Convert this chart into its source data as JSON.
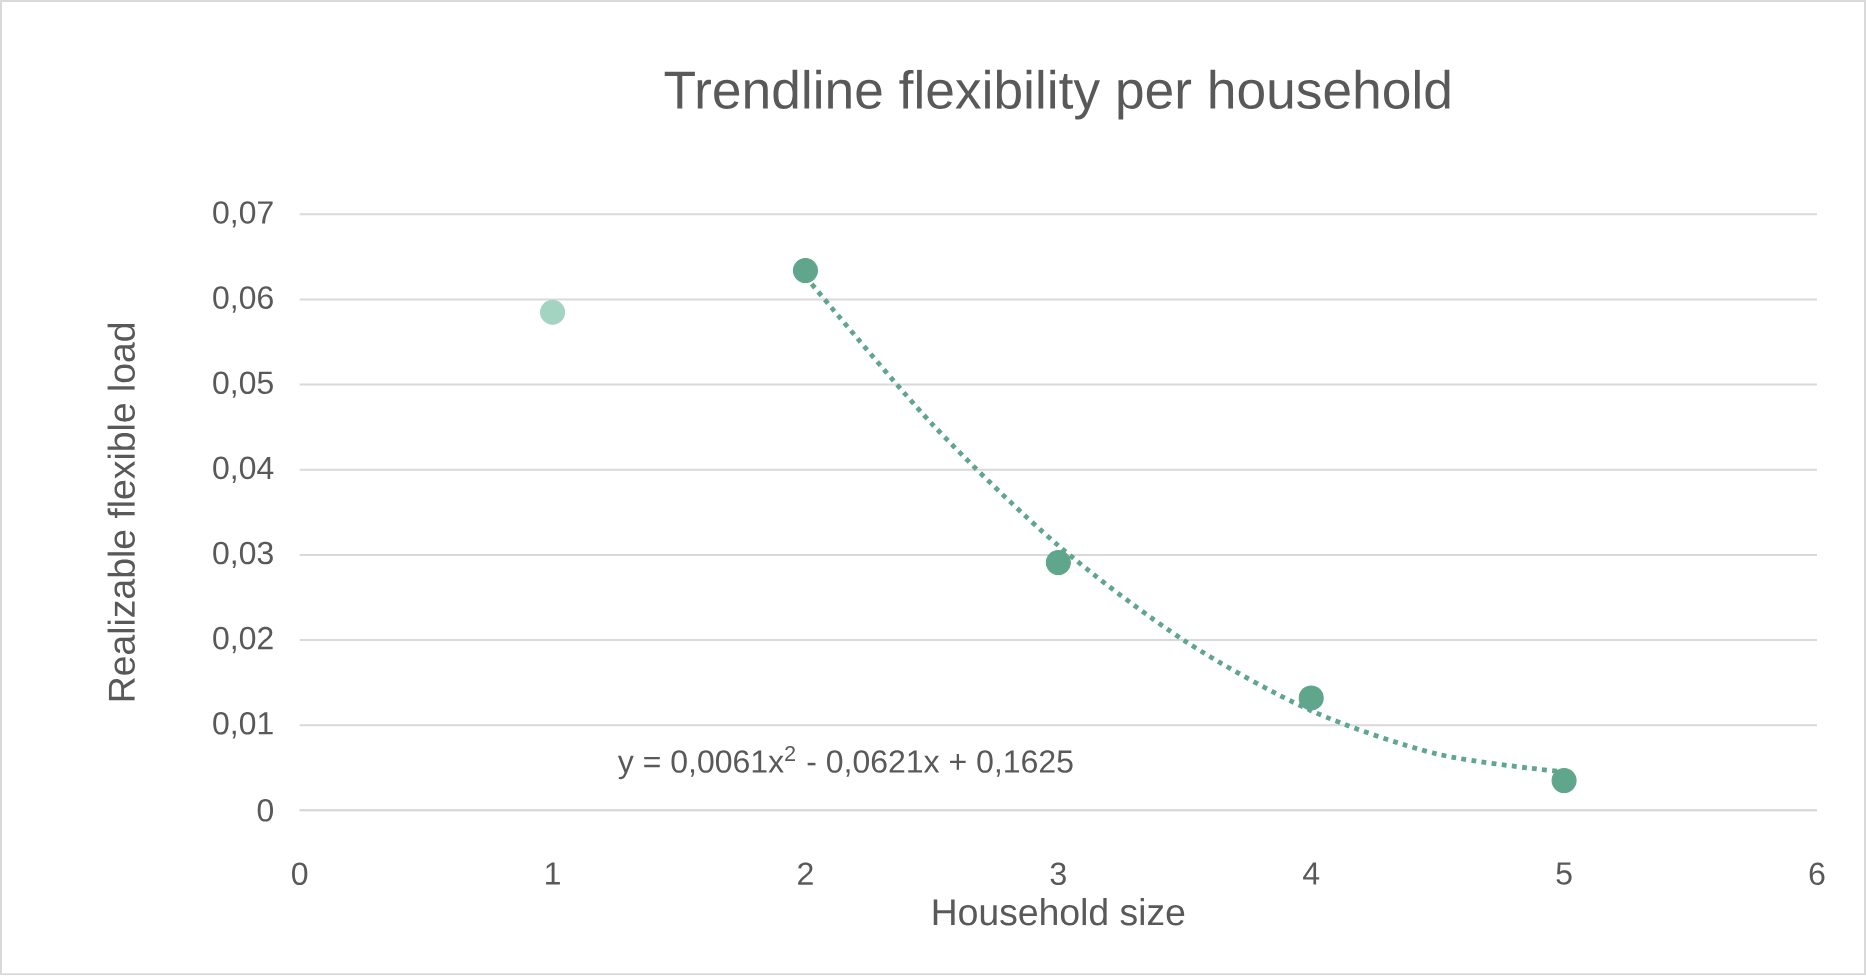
{
  "chart_data": {
    "type": "scatter",
    "title": "Trendline flexibility per household",
    "xlabel": "Household size",
    "ylabel": "Realizable flexible load",
    "xlim": [
      0,
      6
    ],
    "xticks": [
      0,
      1,
      2,
      3,
      4,
      5,
      6
    ],
    "ylim": [
      0,
      0.07
    ],
    "yticks": [
      0,
      {
        "value": 0.01,
        "label": "0,01"
      },
      {
        "value": 0.02,
        "label": "0,02"
      },
      {
        "value": 0.03,
        "label": "0,03"
      },
      {
        "value": 0.04,
        "label": "0,04"
      },
      {
        "value": 0.05,
        "label": "0,05"
      },
      {
        "value": 0.06,
        "label": "0,06"
      },
      {
        "value": 0.07,
        "label": "0,07"
      }
    ],
    "grid": "y",
    "annotations": [
      "y = 0,0061x$^{2}$ - 0,0621x + 0,1625"
    ],
    "series": [
      {
        "marker": "circle",
        "x": [
          1,
          2,
          3,
          4,
          5
        ],
        "values": [
          0.0585,
          0.0634,
          0.0291,
          0.0132,
          0.0035
        ],
        "colors": [
          "#a3d4c2",
          "#5fa68c",
          "#5fa68c",
          "#5fa68c",
          "#5fa68c"
        ]
      },
      {
        "type": "line",
        "x": [
          2,
          2.5,
          3,
          3.5,
          4,
          4.5,
          5
        ],
        "values": [
          0.0627,
          0.0454,
          0.0311,
          0.0199,
          0.0117,
          0.0066,
          0.0045
        ],
        "color": "#5fa68c",
        "line_style": "dotted",
        "marker": "none"
      }
    ]
  }
}
